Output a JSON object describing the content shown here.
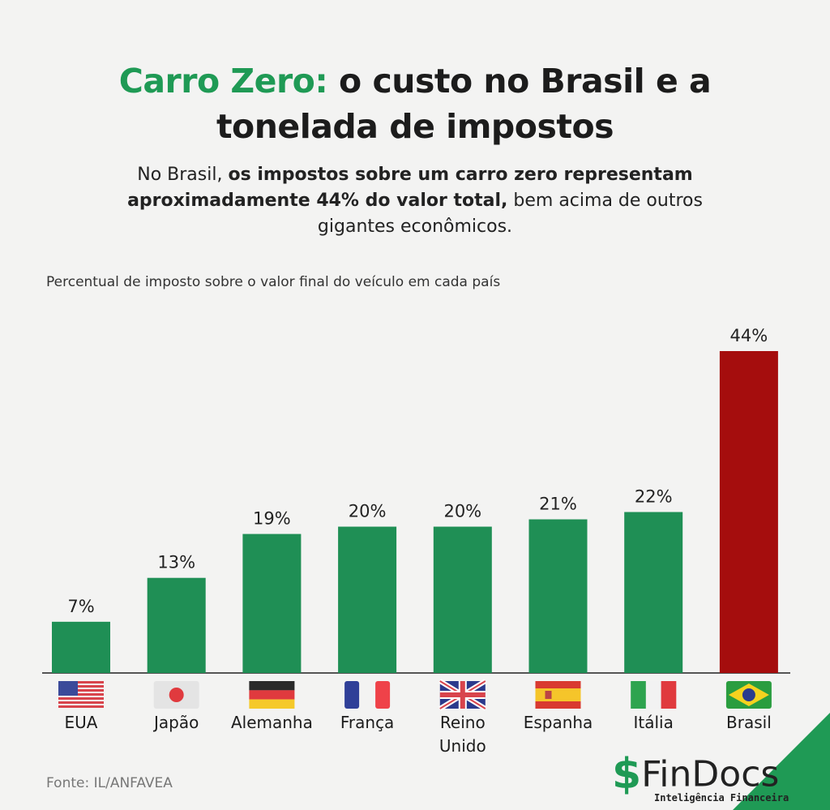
{
  "header": {
    "title_highlight": "Carro Zero:",
    "title_rest_line1": " o custo no Brasil e a",
    "title_line2": "tonelada de impostos",
    "subtitle_part1": "No Brasil, ",
    "subtitle_bold": "os impostos sobre um carro zero representam aproximadamente 44% do valor total,",
    "subtitle_part2": " bem acima de outros gigantes econômicos."
  },
  "chart_data": {
    "type": "bar",
    "title": "Percentual de imposto sobre o valor final do veículo em cada país",
    "categories": [
      "EUA",
      "Japão",
      "Alemanha",
      "França",
      "Reino Unido",
      "Espanha",
      "Itália",
      "Brasil"
    ],
    "values": [
      7,
      13,
      19,
      20,
      20,
      21,
      22,
      44
    ],
    "data_labels": [
      "7%",
      "13%",
      "19%",
      "20%",
      "20%",
      "21%",
      "22%",
      "44%"
    ],
    "colors": [
      "#1f8f55",
      "#1f8f55",
      "#1f8f55",
      "#1f8f55",
      "#1f8f55",
      "#1f8f55",
      "#1f8f55",
      "#a50d0d"
    ],
    "flags": [
      "us-flag",
      "japan-flag",
      "germany-flag",
      "france-flag",
      "uk-flag",
      "spain-flag",
      "italy-flag",
      "brazil-flag"
    ],
    "ylim": [
      0,
      44
    ],
    "grid": false,
    "legend": "none"
  },
  "footer": {
    "source": "Fonte: IL/ANFAVEA",
    "brand": "FinDocs",
    "brand_symbol": "$",
    "brand_tagline": "Inteligência Financeira"
  },
  "colors": {
    "green": "#1f9a55",
    "red": "#a50d0d"
  }
}
